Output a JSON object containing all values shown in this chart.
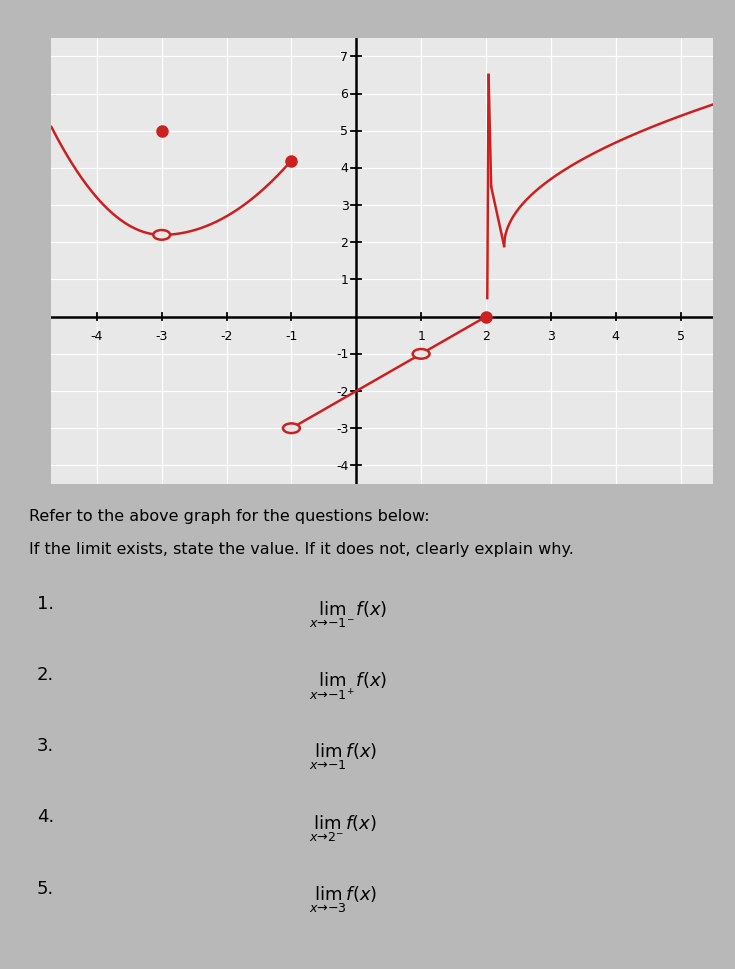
{
  "xlim": [
    -4.7,
    5.5
  ],
  "ylim": [
    -4.5,
    7.5
  ],
  "graph_bg": "#e8e8e8",
  "fig_bg": "#c8c8c8",
  "grid_color": "#ffffff",
  "axis_color": "#000000",
  "curve_color": "#cc2020",
  "curve_lw": 1.8,
  "seg1_x_start": -4.7,
  "seg1_x_end": -1.0,
  "seg1_min_x": -3.0,
  "seg1_min_y": 2.2,
  "seg1_left_y": 5.1,
  "seg1_right_y": 4.2,
  "seg1_dot_x": -3.0,
  "seg1_dot_y": 5.0,
  "seg1_end_dot_x": -1.0,
  "seg1_end_dot_y": 4.2,
  "seg2_x_start": -1.0,
  "seg2_x_end": 2.0,
  "seg2_open1_x": -1.0,
  "seg2_open1_y": -3.0,
  "seg2_open2_x": 1.0,
  "seg2_open2_y": -1.0,
  "seg2_dot_x": 2.0,
  "seg2_dot_y": 0.0,
  "seg3_spike_x": 2.05,
  "seg3_spike_top": 6.5,
  "seg3_min_x": 2.25,
  "seg3_min_y": 1.9,
  "seg3_end_x": 5.5,
  "seg3_end_y": 5.2,
  "text_line1": "Refer to the above graph for the questions below:",
  "text_line2": "If the limit exists, state the value. If it does not, clearly explain why.",
  "questions": [
    {
      "num": "1.",
      "expr": "$\\lim_{x \\to -1^-} f(x)$"
    },
    {
      "num": "2.",
      "expr": "$\\lim_{x \\to -1^+} f(x)$"
    },
    {
      "num": "3.",
      "expr": "$\\lim_{x \\to -1} f(x)$"
    },
    {
      "num": "4.",
      "expr": "$\\lim_{x \\to 2^-} f(x)$"
    },
    {
      "num": "5.",
      "expr": "$\\lim_{x \\to -3} f(x)$"
    }
  ]
}
